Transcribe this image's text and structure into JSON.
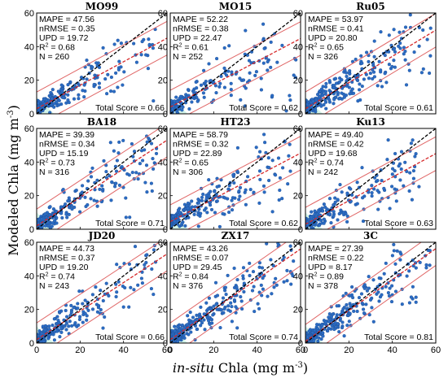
{
  "figure": {
    "xlabel_italic": "in-situ",
    "xlabel_rest": " Chla (mg m",
    "xlabel_exp": "-3",
    "xlabel_close": ")",
    "ylabel": "Modeled Chla (mg m",
    "ylabel_exp": "-3",
    "ylabel_close": ")"
  },
  "chart_data": [
    {
      "type": "scatter",
      "title": "MO99",
      "stats": {
        "mape": "MAPE = 47.56",
        "nrmse": "nRMSE = 0.35",
        "upd": "UPD = 19.72",
        "r2_value": " = 0.68",
        "n": "N = 260"
      },
      "score": "Total Score = 0.66",
      "regression": {
        "slope": 0.7,
        "intercept": 3.0
      },
      "xlim": [
        0,
        60
      ],
      "ylim": [
        0,
        60
      ],
      "xticks": [
        "0",
        "20",
        "40",
        "60"
      ],
      "yticks": [
        "0",
        "20",
        "40",
        "60"
      ],
      "band_offset": 10,
      "seed": 11,
      "scale": 1.0
    },
    {
      "type": "scatter",
      "title": "MO15",
      "stats": {
        "mape": "MAPE = 52.22",
        "nrmse": "nRMSE = 0.38",
        "upd": "UPD = 22.47",
        "r2_value": " = 0.61",
        "n": "N = 252"
      },
      "score": "Total Score = 0.62",
      "regression": {
        "slope": 0.68,
        "intercept": 4.0
      },
      "xlim": [
        0,
        60
      ],
      "ylim": [
        0,
        60
      ],
      "xticks": [
        "0",
        "20",
        "40",
        "60"
      ],
      "yticks": [
        "0",
        "20",
        "40",
        "60"
      ],
      "band_offset": 10,
      "seed": 23,
      "scale": 1.05
    },
    {
      "type": "scatter",
      "title": "Ru05",
      "stats": {
        "mape": "MAPE = 53.97",
        "nrmse": "nRMSE = 0.41",
        "upd": "UPD = 20.80",
        "r2_value": " = 0.65",
        "n": "N = 326"
      },
      "score": "Total Score = 0.61",
      "regression": {
        "slope": 0.78,
        "intercept": 3.0
      },
      "xlim": [
        0,
        60
      ],
      "ylim": [
        0,
        60
      ],
      "xticks": [
        "0",
        "20",
        "40",
        "60"
      ],
      "yticks": [
        "0",
        "20",
        "40",
        "60"
      ],
      "band_offset": 10,
      "seed": 37,
      "scale": 1.1
    },
    {
      "type": "scatter",
      "title": "BA18",
      "stats": {
        "mape": "MAPE = 39.39",
        "nrmse": "nRMSE = 0.34",
        "upd": "UPD = 15.19",
        "r2_value": " = 0.73",
        "n": "N = 316"
      },
      "score": "Total Score = 0.71",
      "regression": {
        "slope": 0.85,
        "intercept": 2.0
      },
      "xlim": [
        0,
        60
      ],
      "ylim": [
        0,
        60
      ],
      "xticks": [
        "0",
        "20",
        "40",
        "60"
      ],
      "yticks": [
        "0",
        "20",
        "40",
        "60"
      ],
      "band_offset": 10,
      "seed": 41,
      "scale": 1.0
    },
    {
      "type": "scatter",
      "title": "HT23",
      "stats": {
        "mape": "MAPE = 58.79",
        "nrmse": "nRMSE = 0.32",
        "upd": "UPD = 22.89",
        "r2_value": " = 0.65",
        "n": "N = 306"
      },
      "score": "Total Score = 0.62",
      "regression": {
        "slope": 0.68,
        "intercept": 4.5
      },
      "xlim": [
        0,
        60
      ],
      "ylim": [
        0,
        60
      ],
      "xticks": [
        "0",
        "20",
        "40",
        "60"
      ],
      "yticks": [
        "0",
        "20",
        "40",
        "60"
      ],
      "band_offset": 10,
      "seed": 53,
      "scale": 1.0
    },
    {
      "type": "scatter",
      "title": "Ku13",
      "stats": {
        "mape": "MAPE = 49.40",
        "nrmse": "nRMSE = 0.42",
        "upd": "UPD = 19.68",
        "r2_value": " = 0.74",
        "n": "N = 242"
      },
      "score": "Total Score = 0.63",
      "regression": {
        "slope": 0.7,
        "intercept": 3.0
      },
      "xlim": [
        0,
        60
      ],
      "ylim": [
        0,
        60
      ],
      "xticks": [
        "0",
        "20",
        "40",
        "60"
      ],
      "yticks": [
        "0",
        "20",
        "40",
        "60"
      ],
      "band_offset": 10,
      "seed": 61,
      "scale": 0.95
    },
    {
      "type": "scatter",
      "title": "JD20",
      "stats": {
        "mape": "MAPE = 44.73",
        "nrmse": "nRMSE = 0.37",
        "upd": "UPD = 19.20",
        "r2_value": " = 0.74",
        "n": "N = 243"
      },
      "score": "Total Score = 0.66",
      "regression": {
        "slope": 0.85,
        "intercept": 2.0
      },
      "xlim": [
        0,
        60
      ],
      "ylim": [
        0,
        60
      ],
      "xticks": [
        "0",
        "20",
        "40",
        "60"
      ],
      "yticks": [
        "0",
        "20",
        "40",
        "60"
      ],
      "band_offset": 10,
      "seed": 71,
      "scale": 1.0
    },
    {
      "type": "scatter",
      "title": "ZX17",
      "stats": {
        "mape": "MAPE = 43.26",
        "nrmse": "nRMSE = 0.07",
        "upd": "UPD = 29.45",
        "r2_value": " = 0.84",
        "n": "N = 376"
      },
      "score": "Total Score = 0.74",
      "regression": {
        "slope": 0.9,
        "intercept": 2.0
      },
      "xlim": [
        0,
        60
      ],
      "ylim": [
        0,
        60
      ],
      "xticks": [
        "0",
        "20",
        "40",
        "60"
      ],
      "yticks": [
        "0",
        "20",
        "40",
        "60"
      ],
      "band_offset": 10,
      "seed": 83,
      "scale": 1.05
    },
    {
      "type": "scatter",
      "title": "3C",
      "stats": {
        "mape": "MAPE = 27.39",
        "nrmse": "nRMSE = 0.22",
        "upd": "UPD = 8.17",
        "r2_value": " = 0.89",
        "n": "N = 378"
      },
      "score": "Total Score = 0.81",
      "regression": {
        "slope": 0.92,
        "intercept": 1.0
      },
      "xlim": [
        0,
        60
      ],
      "ylim": [
        0,
        60
      ],
      "xticks": [
        "0",
        "20",
        "40",
        "60"
      ],
      "yticks": [
        "0",
        "20",
        "40",
        "60"
      ],
      "band_offset": 10,
      "seed": 97,
      "scale": 1.1
    }
  ],
  "colors": {
    "points": "#2b6cc4",
    "points_edge": "#1f4f96",
    "one_to_one": "#000000",
    "regression": "#d62728",
    "band": "#e06666",
    "noise_band": "#7fe0c0"
  }
}
